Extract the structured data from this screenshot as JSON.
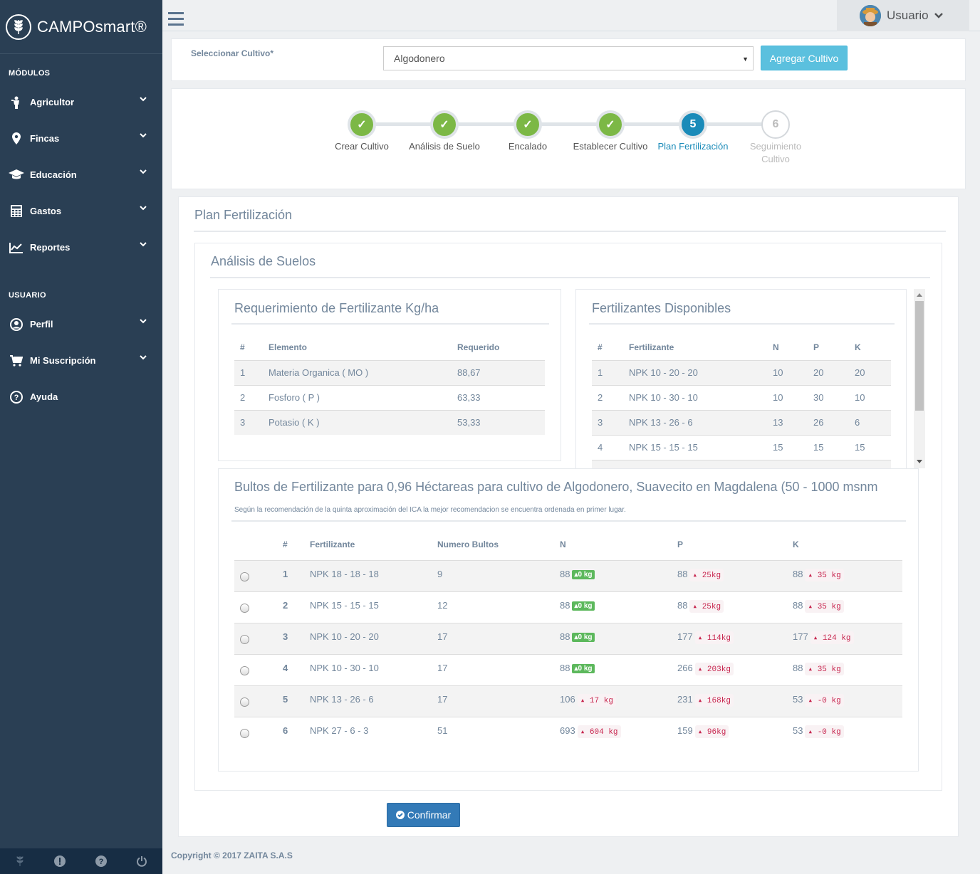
{
  "sidebar": {
    "brand": "CAMPOsmart®",
    "modules_title": "MÓDULOS",
    "modules": [
      {
        "label": "Agricultor",
        "icon": "farmer-icon"
      },
      {
        "label": "Fincas",
        "icon": "map-marker-icon"
      },
      {
        "label": "Educación",
        "icon": "graduation-cap-icon"
      },
      {
        "label": "Gastos",
        "icon": "calculator-icon"
      },
      {
        "label": "Reportes",
        "icon": "line-chart-icon"
      }
    ],
    "user_title": "USUARIO",
    "user_items": [
      {
        "label": "Perfil",
        "icon": "user-circle-icon"
      },
      {
        "label": "Mi Suscripción",
        "icon": "cart-icon"
      },
      {
        "label": "Ayuda",
        "icon": "question-circle-icon"
      }
    ]
  },
  "topbar": {
    "user": "Usuario"
  },
  "crop": {
    "label": "Seleccionar Cultivo*",
    "selected": "Algodonero",
    "add_button": "Agregar Cultivo"
  },
  "wizard": {
    "steps": [
      {
        "num": "✓",
        "label": "Crear Cultivo",
        "state": "done"
      },
      {
        "num": "✓",
        "label": "Análisis de Suelo",
        "state": "done"
      },
      {
        "num": "✓",
        "label": "Encalado",
        "state": "done"
      },
      {
        "num": "✓",
        "label": "Establecer Cultivo",
        "state": "done"
      },
      {
        "num": "5",
        "label": "Plan Fertilización",
        "state": "current"
      },
      {
        "num": "6",
        "label": "Seguimiento Cultivo",
        "state": "todo"
      }
    ]
  },
  "plan": {
    "title": "Plan Fertilización",
    "soil_title": "Análisis de Suelos"
  },
  "requirement": {
    "title": "Requerimiento de Fertilizante Kg/ha",
    "headers": [
      "#",
      "Elemento",
      "Requerido"
    ],
    "rows": [
      [
        "1",
        "Materia Organica ( MO )",
        "88,67"
      ],
      [
        "2",
        "Fosforo ( P )",
        "63,33"
      ],
      [
        "3",
        "Potasio ( K )",
        "53,33"
      ]
    ]
  },
  "available": {
    "title": "Fertilizantes Disponibles",
    "headers": [
      "#",
      "Fertilizante",
      "N",
      "P",
      "K"
    ],
    "rows": [
      [
        "1",
        "NPK 10 - 20 - 20",
        "10",
        "20",
        "20"
      ],
      [
        "2",
        "NPK 10 - 30 - 10",
        "10",
        "30",
        "10"
      ],
      [
        "3",
        "NPK 13 - 26 - 6",
        "13",
        "26",
        "6"
      ],
      [
        "4",
        "NPK 15 - 15 - 15",
        "15",
        "15",
        "15"
      ]
    ]
  },
  "bultos": {
    "title": "Bultos de Fertilizante para 0,96 Héctareas para cultivo de Algodonero, Suavecito en Magdalena (50 - 1000 msnm",
    "note": "Según la recomendación de la quinta aproximación del ICA la mejor recomendacion se encuentra ordenada en primer lugar.",
    "headers": [
      "#",
      "Fertilizante",
      "Numero Bultos",
      "N",
      "P",
      "K"
    ],
    "rows": [
      {
        "n": "1",
        "fert": "NPK 18 - 18 - 18",
        "bultos": "9",
        "N": "88",
        "Nb": "▴0 kg",
        "Ng": true,
        "P": "88",
        "Pb": "▴ 25kg",
        "K": "88",
        "Kb": "▴ 35 kg"
      },
      {
        "n": "2",
        "fert": "NPK 15 - 15 - 15",
        "bultos": "12",
        "N": "88",
        "Nb": "▴0 kg",
        "Ng": true,
        "P": "88",
        "Pb": "▴ 25kg",
        "K": "88",
        "Kb": "▴ 35 kg"
      },
      {
        "n": "3",
        "fert": "NPK 10 - 20 - 20",
        "bultos": "17",
        "N": "88",
        "Nb": "▴0 kg",
        "Ng": true,
        "P": "177",
        "Pb": "▴ 114kg",
        "K": "177",
        "Kb": "▴ 124 kg"
      },
      {
        "n": "4",
        "fert": "NPK 10 - 30 - 10",
        "bultos": "17",
        "N": "88",
        "Nb": "▴0 kg",
        "Ng": true,
        "P": "266",
        "Pb": "▴ 203kg",
        "K": "88",
        "Kb": "▴ 35 kg"
      },
      {
        "n": "5",
        "fert": "NPK 13 - 26 - 6",
        "bultos": "17",
        "N": "106",
        "Nb": "▴ 17 kg",
        "Ng": false,
        "P": "231",
        "Pb": "▴ 168kg",
        "K": "53",
        "Kb": "▴ -0 kg"
      },
      {
        "n": "6",
        "fert": "NPK 27 - 6 - 3",
        "bultos": "51",
        "N": "693",
        "Nb": "▴ 604 kg",
        "Ng": false,
        "P": "159",
        "Pb": "▴ 96kg",
        "K": "53",
        "Kb": "▴ -0 kg"
      }
    ]
  },
  "confirm": "Confirmar",
  "copyright": "Copyright © 2017 ZAITA S.A.S"
}
